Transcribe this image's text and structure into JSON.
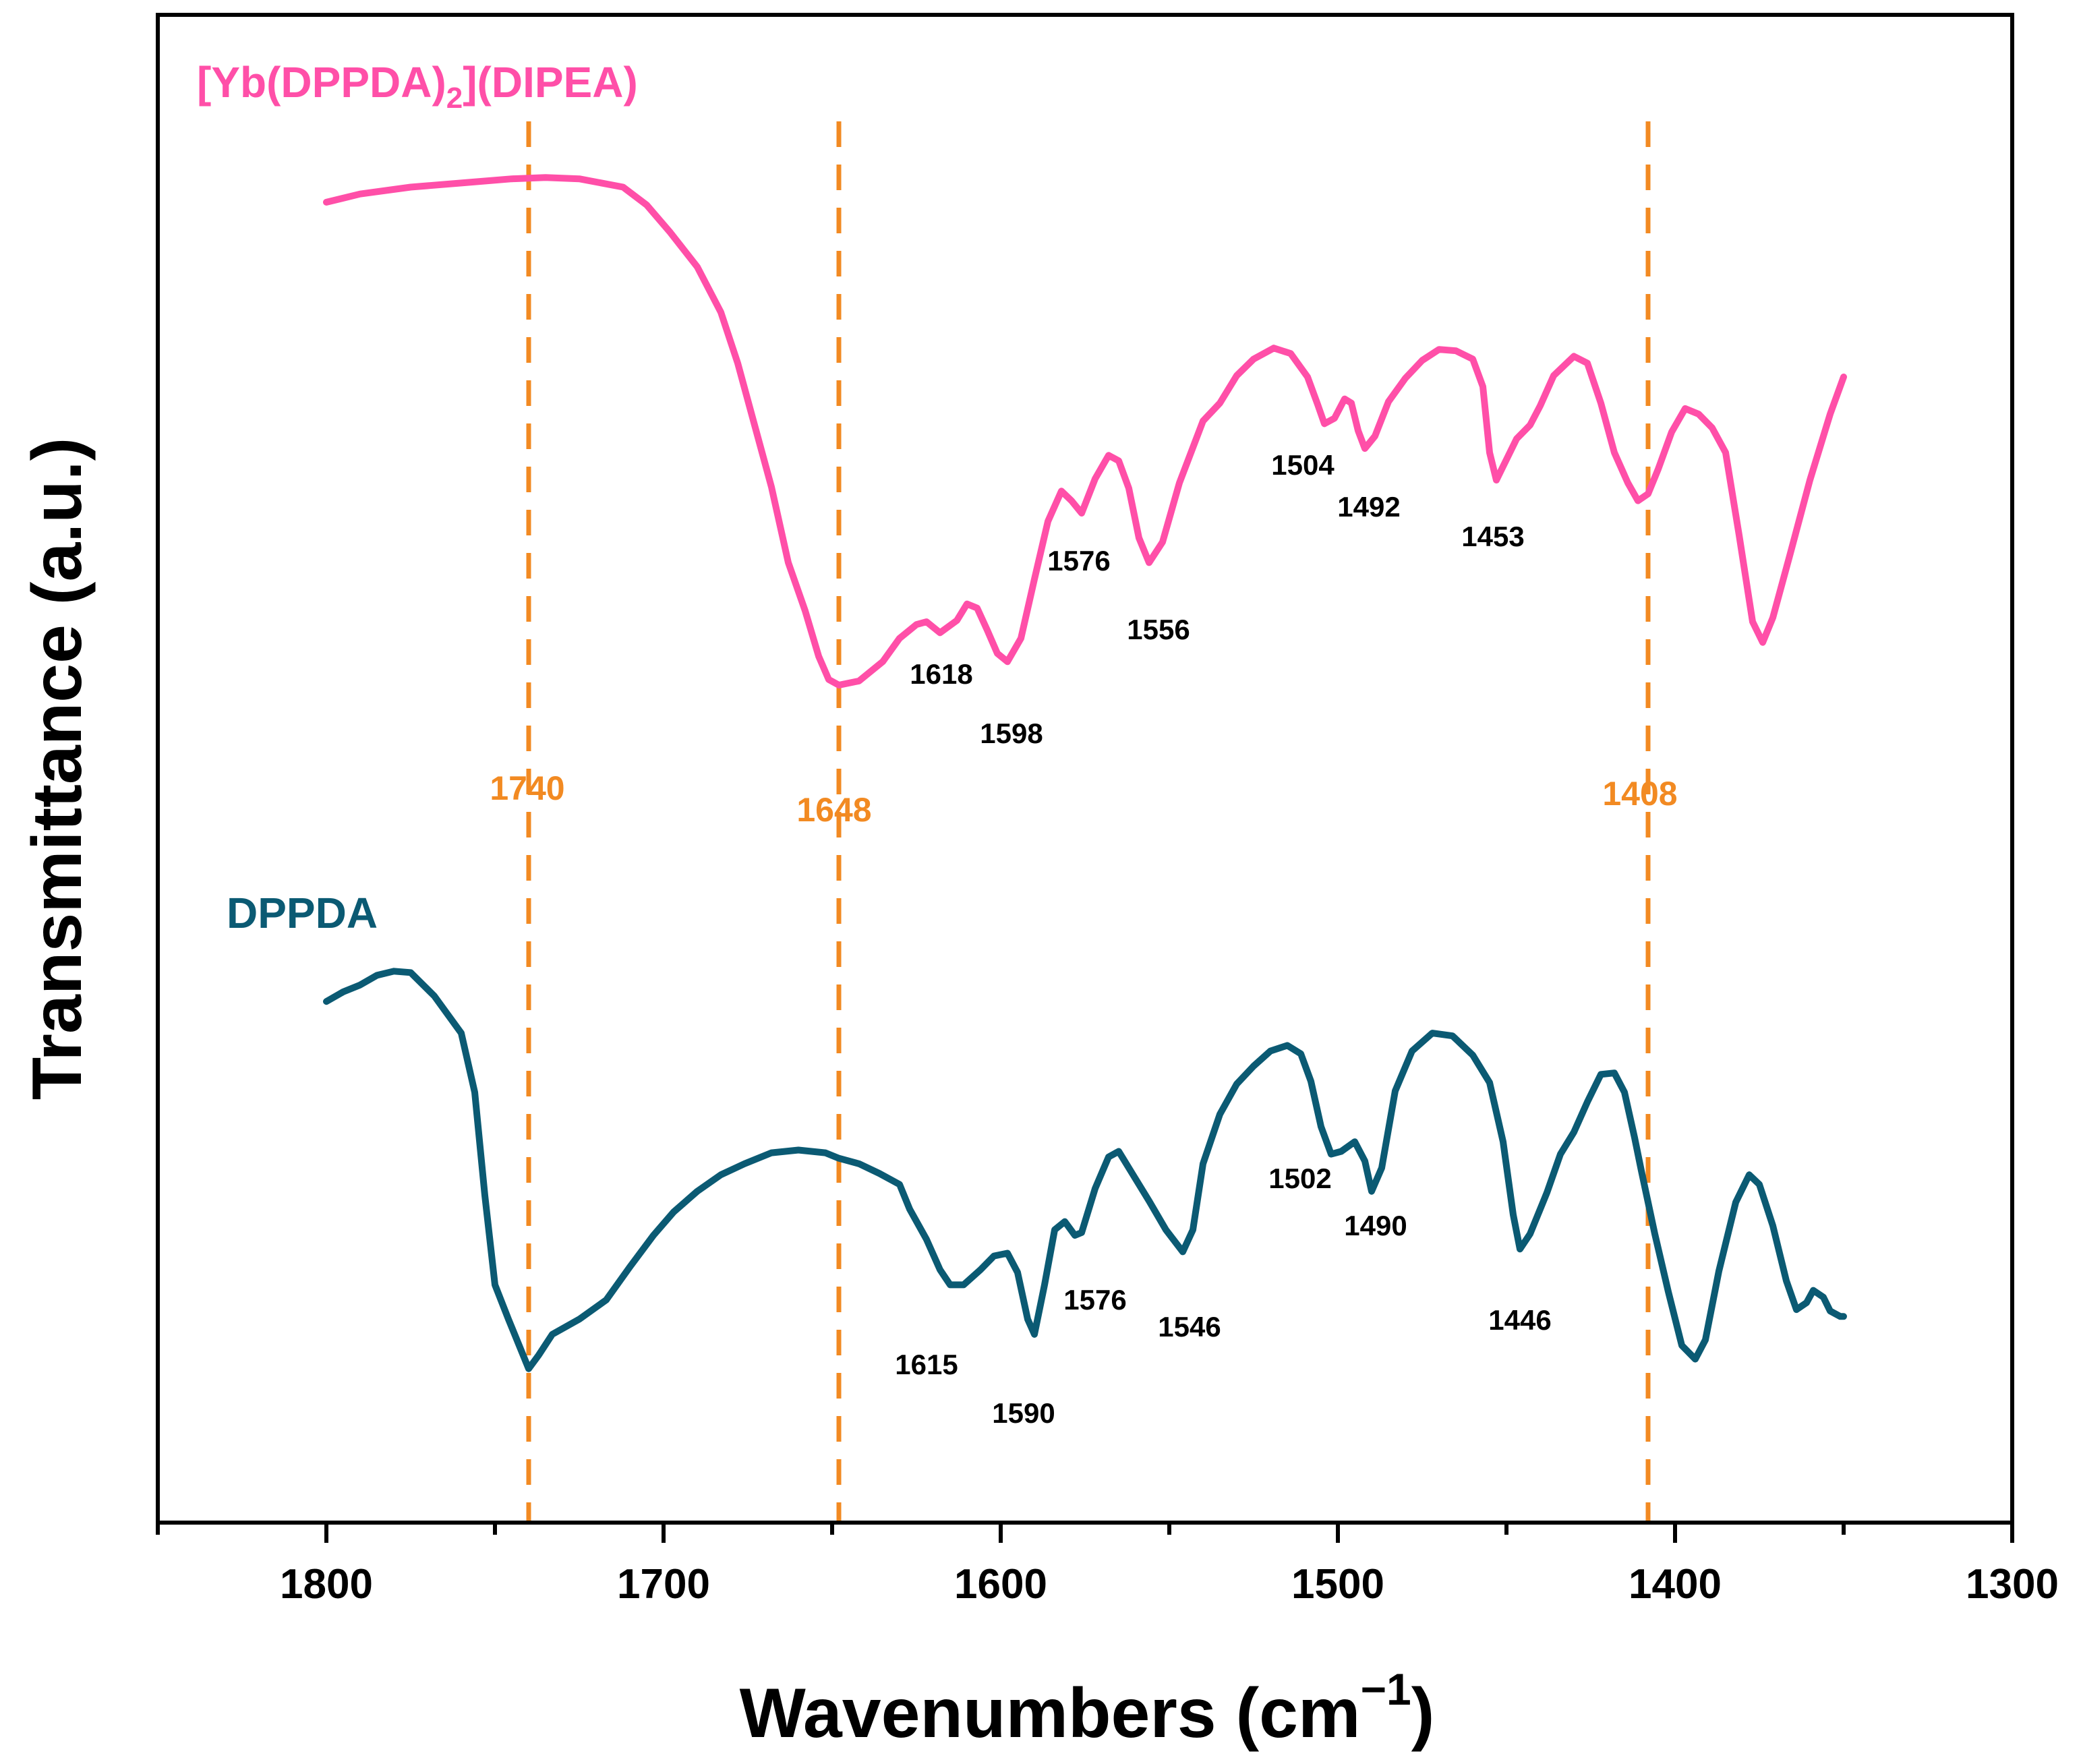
{
  "chart_data": {
    "type": "line",
    "xlabel": "Wavenumbers (cm",
    "xlabel_superscript": "−1",
    "xlabel_close": ")",
    "ylabel": "Transmittance (a.u.)",
    "xlim": [
      1850,
      1300
    ],
    "x_reversed": true,
    "ylim": [
      0,
      1
    ],
    "x_ticks": [
      1800,
      1700,
      1600,
      1500,
      1400,
      1300
    ],
    "y_ticks_shown": false,
    "grid": false,
    "reference_lines": [
      {
        "x": 1740,
        "label": "1740"
      },
      {
        "x": 1648,
        "label": "1648"
      },
      {
        "x": 1408,
        "label": "1408"
      }
    ],
    "series": [
      {
        "name": "[Yb(DPPDA)",
        "name_subscript": "2",
        "name_suffix": "](DIPEA)",
        "color": "#FF4FA8",
        "points": [
          [
            1800,
            0.902
          ],
          [
            1790,
            0.908
          ],
          [
            1775,
            0.913
          ],
          [
            1760,
            0.916
          ],
          [
            1745,
            0.919
          ],
          [
            1735,
            0.92
          ],
          [
            1725,
            0.919
          ],
          [
            1712,
            0.913
          ],
          [
            1705,
            0.9
          ],
          [
            1698,
            0.88
          ],
          [
            1690,
            0.855
          ],
          [
            1683,
            0.822
          ],
          [
            1678,
            0.785
          ],
          [
            1673,
            0.74
          ],
          [
            1668,
            0.695
          ],
          [
            1663,
            0.64
          ],
          [
            1658,
            0.605
          ],
          [
            1654,
            0.572
          ],
          [
            1651,
            0.555
          ],
          [
            1648,
            0.551
          ],
          [
            1642,
            0.554
          ],
          [
            1635,
            0.568
          ],
          [
            1630,
            0.585
          ],
          [
            1625,
            0.595
          ],
          [
            1622,
            0.597
          ],
          [
            1618,
            0.589
          ],
          [
            1613,
            0.598
          ],
          [
            1610,
            0.61
          ],
          [
            1607,
            0.607
          ],
          [
            1604,
            0.591
          ],
          [
            1601,
            0.574
          ],
          [
            1598,
            0.568
          ],
          [
            1594,
            0.585
          ],
          [
            1590,
            0.628
          ],
          [
            1586,
            0.67
          ],
          [
            1582,
            0.692
          ],
          [
            1579,
            0.685
          ],
          [
            1576,
            0.676
          ],
          [
            1572,
            0.701
          ],
          [
            1568,
            0.718
          ],
          [
            1565,
            0.714
          ],
          [
            1562,
            0.694
          ],
          [
            1559,
            0.658
          ],
          [
            1556,
            0.64
          ],
          [
            1552,
            0.655
          ],
          [
            1547,
            0.698
          ],
          [
            1540,
            0.743
          ],
          [
            1535,
            0.756
          ],
          [
            1530,
            0.776
          ],
          [
            1525,
            0.788
          ],
          [
            1519,
            0.796
          ],
          [
            1514,
            0.792
          ],
          [
            1509,
            0.775
          ],
          [
            1506,
            0.755
          ],
          [
            1504,
            0.741
          ],
          [
            1501,
            0.745
          ],
          [
            1498,
            0.759
          ],
          [
            1496,
            0.756
          ],
          [
            1494,
            0.736
          ],
          [
            1492,
            0.723
          ],
          [
            1489,
            0.732
          ],
          [
            1485,
            0.757
          ],
          [
            1480,
            0.774
          ],
          [
            1475,
            0.787
          ],
          [
            1470,
            0.795
          ],
          [
            1465,
            0.794
          ],
          [
            1460,
            0.788
          ],
          [
            1457,
            0.768
          ],
          [
            1455,
            0.72
          ],
          [
            1453,
            0.7
          ],
          [
            1450,
            0.715
          ],
          [
            1447,
            0.73
          ],
          [
            1443,
            0.74
          ],
          [
            1440,
            0.754
          ],
          [
            1436,
            0.776
          ],
          [
            1430,
            0.79
          ],
          [
            1426,
            0.785
          ],
          [
            1422,
            0.756
          ],
          [
            1418,
            0.72
          ],
          [
            1414,
            0.698
          ],
          [
            1411,
            0.685
          ],
          [
            1408,
            0.69
          ],
          [
            1405,
            0.708
          ],
          [
            1401,
            0.735
          ],
          [
            1397,
            0.752
          ],
          [
            1393,
            0.748
          ],
          [
            1389,
            0.738
          ],
          [
            1385,
            0.72
          ],
          [
            1381,
            0.66
          ],
          [
            1377,
            0.597
          ],
          [
            1374,
            0.582
          ],
          [
            1371,
            0.6
          ],
          [
            1366,
            0.645
          ],
          [
            1360,
            0.7
          ],
          [
            1354,
            0.748
          ],
          [
            1350,
            0.775
          ]
        ],
        "peak_labels": [
          "1618",
          "1598",
          "1576",
          "1556",
          "1504",
          "1492",
          "1453"
        ]
      },
      {
        "name": "DPPDA",
        "color": "#0B5A73",
        "points": [
          [
            1800,
            0.321
          ],
          [
            1795,
            0.328
          ],
          [
            1790,
            0.333
          ],
          [
            1785,
            0.34
          ],
          [
            1780,
            0.343
          ],
          [
            1775,
            0.342
          ],
          [
            1768,
            0.325
          ],
          [
            1760,
            0.298
          ],
          [
            1756,
            0.255
          ],
          [
            1753,
            0.18
          ],
          [
            1750,
            0.115
          ],
          [
            1746,
            0.09
          ],
          [
            1742,
            0.066
          ],
          [
            1740,
            0.054
          ],
          [
            1737,
            0.064
          ],
          [
            1733,
            0.079
          ],
          [
            1725,
            0.09
          ],
          [
            1717,
            0.104
          ],
          [
            1710,
            0.128
          ],
          [
            1703,
            0.151
          ],
          [
            1697,
            0.168
          ],
          [
            1690,
            0.183
          ],
          [
            1683,
            0.195
          ],
          [
            1676,
            0.203
          ],
          [
            1668,
            0.211
          ],
          [
            1660,
            0.213
          ],
          [
            1652,
            0.211
          ],
          [
            1648,
            0.207
          ],
          [
            1642,
            0.203
          ],
          [
            1636,
            0.196
          ],
          [
            1630,
            0.188
          ],
          [
            1627,
            0.17
          ],
          [
            1622,
            0.148
          ],
          [
            1618,
            0.126
          ],
          [
            1615,
            0.115
          ],
          [
            1611,
            0.115
          ],
          [
            1606,
            0.126
          ],
          [
            1602,
            0.136
          ],
          [
            1598,
            0.138
          ],
          [
            1595,
            0.124
          ],
          [
            1592,
            0.09
          ],
          [
            1590,
            0.079
          ],
          [
            1587,
            0.115
          ],
          [
            1584,
            0.155
          ],
          [
            1581,
            0.161
          ],
          [
            1578,
            0.151
          ],
          [
            1576,
            0.153
          ],
          [
            1572,
            0.185
          ],
          [
            1568,
            0.208
          ],
          [
            1565,
            0.212
          ],
          [
            1561,
            0.196
          ],
          [
            1556,
            0.176
          ],
          [
            1551,
            0.155
          ],
          [
            1546,
            0.139
          ],
          [
            1543,
            0.155
          ],
          [
            1540,
            0.203
          ],
          [
            1535,
            0.239
          ],
          [
            1530,
            0.261
          ],
          [
            1525,
            0.274
          ],
          [
            1520,
            0.285
          ],
          [
            1515,
            0.289
          ],
          [
            1511,
            0.283
          ],
          [
            1508,
            0.263
          ],
          [
            1505,
            0.23
          ],
          [
            1502,
            0.21
          ],
          [
            1499,
            0.212
          ],
          [
            1495,
            0.219
          ],
          [
            1492,
            0.205
          ],
          [
            1490,
            0.183
          ],
          [
            1487,
            0.2
          ],
          [
            1483,
            0.256
          ],
          [
            1478,
            0.285
          ],
          [
            1472,
            0.298
          ],
          [
            1466,
            0.296
          ],
          [
            1460,
            0.282
          ],
          [
            1455,
            0.262
          ],
          [
            1451,
            0.219
          ],
          [
            1448,
            0.166
          ],
          [
            1446,
            0.141
          ],
          [
            1443,
            0.152
          ],
          [
            1438,
            0.182
          ],
          [
            1434,
            0.21
          ],
          [
            1430,
            0.226
          ],
          [
            1426,
            0.248
          ],
          [
            1422,
            0.268
          ],
          [
            1418,
            0.269
          ],
          [
            1415,
            0.255
          ],
          [
            1412,
            0.222
          ],
          [
            1410,
            0.198
          ],
          [
            1406,
            0.152
          ],
          [
            1402,
            0.11
          ],
          [
            1398,
            0.071
          ],
          [
            1394,
            0.061
          ],
          [
            1391,
            0.075
          ],
          [
            1387,
            0.125
          ],
          [
            1382,
            0.175
          ],
          [
            1378,
            0.195
          ],
          [
            1375,
            0.188
          ],
          [
            1371,
            0.158
          ],
          [
            1367,
            0.118
          ],
          [
            1364,
            0.097
          ],
          [
            1361,
            0.102
          ],
          [
            1359,
            0.111
          ],
          [
            1356,
            0.106
          ],
          [
            1354,
            0.096
          ],
          [
            1351,
            0.092
          ],
          [
            1350,
            0.092
          ]
        ],
        "peak_labels": [
          "1615",
          "1590",
          "1576",
          "1546",
          "1502",
          "1490",
          "1446"
        ]
      }
    ]
  }
}
